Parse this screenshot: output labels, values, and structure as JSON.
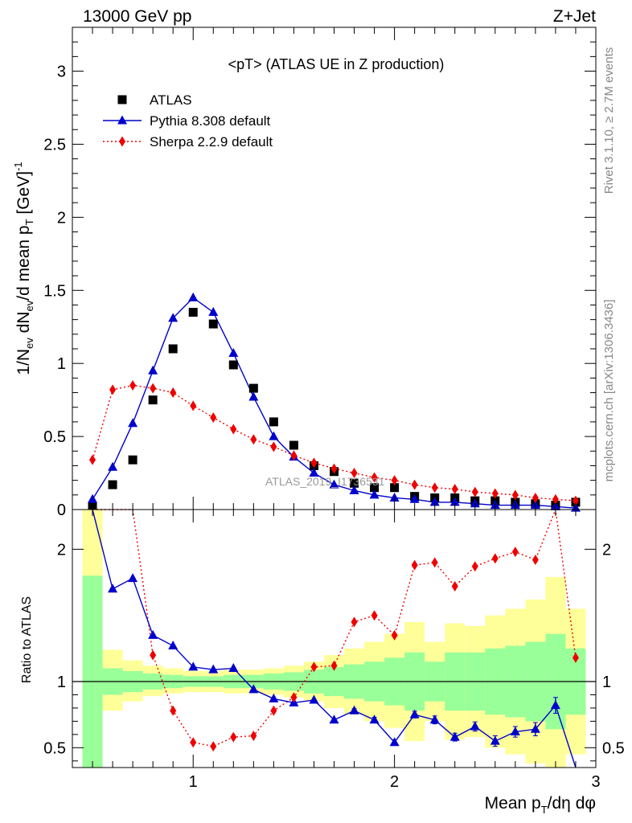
{
  "header": {
    "left": "13000 GeV pp",
    "right": "Z+Jet"
  },
  "side": {
    "rivet": "Rivet 3.1.10, ≥ 2.7M events",
    "mcplots": "mcplots.cern.ch [arXiv:1306.3436]"
  },
  "watermark": "ATLAS_2019_I1736531",
  "colors": {
    "atlas": "#000000",
    "pythia": "#0000cc",
    "sherpa": "#ee0000",
    "band_stat": "#99ff99",
    "band_total": "#ffff99"
  },
  "chart_data": [
    {
      "type": "scatter",
      "title": "<pT> (ATLAS UE in Z production)",
      "ylabel": "1/N_ev dN_ev/d mean p_T [GeV]^-1",
      "xlabel": "Mean p_T/dη dφ",
      "xlim": [
        0.4,
        3.0
      ],
      "ylim": [
        0,
        3.3
      ],
      "xticks": [
        1,
        2,
        3
      ],
      "yticks": [
        0,
        0.5,
        1,
        1.5,
        2,
        2.5,
        3
      ],
      "ytick_labels": [
        "0",
        "0.5",
        "1",
        "1.5",
        "2",
        "2.5",
        "3"
      ],
      "legend_position": "top-left",
      "x": [
        0.5,
        0.6,
        0.7,
        0.8,
        0.9,
        1.0,
        1.1,
        1.2,
        1.3,
        1.4,
        1.5,
        1.6,
        1.7,
        1.8,
        1.9,
        2.0,
        2.1,
        2.2,
        2.3,
        2.4,
        2.5,
        2.6,
        2.7,
        2.8,
        2.9
      ],
      "series": [
        {
          "name": "ATLAS",
          "marker": "square",
          "values": [
            0.02,
            0.17,
            0.34,
            0.75,
            1.1,
            1.35,
            1.27,
            0.99,
            0.83,
            0.6,
            0.44,
            0.3,
            0.26,
            0.18,
            0.15,
            0.15,
            0.09,
            0.08,
            0.08,
            0.06,
            0.06,
            0.05,
            0.04,
            0.03,
            0.05
          ]
        },
        {
          "name": "Pythia 8.308 default",
          "marker": "triangle",
          "line": "solid",
          "values": [
            0.07,
            0.29,
            0.59,
            0.95,
            1.31,
            1.45,
            1.35,
            1.07,
            0.77,
            0.5,
            0.36,
            0.25,
            0.17,
            0.13,
            0.1,
            0.08,
            0.07,
            0.05,
            0.05,
            0.04,
            0.03,
            0.03,
            0.03,
            0.02,
            0.01
          ]
        },
        {
          "name": "Sherpa 2.2.9 default",
          "marker": "diamond",
          "line": "dotted",
          "values": [
            0.34,
            0.82,
            0.85,
            0.83,
            0.8,
            0.71,
            0.63,
            0.55,
            0.48,
            0.43,
            0.37,
            0.32,
            0.28,
            0.25,
            0.22,
            0.2,
            0.17,
            0.15,
            0.14,
            0.12,
            0.11,
            0.1,
            0.08,
            0.07,
            0.06
          ]
        }
      ]
    },
    {
      "type": "line",
      "ylabel": "Ratio to ATLAS",
      "xlabel": "Mean p_T/dη dφ",
      "xlim": [
        0.4,
        3.0
      ],
      "ylim": [
        0.35,
        2.3
      ],
      "xticks": [
        1,
        2,
        3
      ],
      "xtick_labels": [
        "1",
        "2",
        "3"
      ],
      "yticks": [
        0.5,
        1,
        2
      ],
      "ytick_labels": [
        "0.5",
        "1",
        "2"
      ],
      "reference_line": 1,
      "x": [
        0.5,
        0.6,
        0.7,
        0.8,
        0.9,
        1.0,
        1.1,
        1.2,
        1.3,
        1.4,
        1.5,
        1.6,
        1.7,
        1.8,
        1.9,
        2.0,
        2.1,
        2.2,
        2.3,
        2.4,
        2.5,
        2.6,
        2.7,
        2.8,
        2.9
      ],
      "bands": {
        "stat_upper": [
          1.8,
          1.1,
          1.08,
          1.06,
          1.05,
          1.04,
          1.04,
          1.05,
          1.05,
          1.06,
          1.07,
          1.09,
          1.11,
          1.13,
          1.15,
          1.18,
          1.22,
          1.15,
          1.22,
          1.22,
          1.25,
          1.27,
          1.3,
          1.36,
          1.25
        ],
        "stat_lower": [
          0.2,
          0.9,
          0.92,
          0.94,
          0.95,
          0.96,
          0.96,
          0.95,
          0.95,
          0.94,
          0.93,
          0.91,
          0.89,
          0.87,
          0.85,
          0.82,
          0.78,
          0.85,
          0.78,
          0.78,
          0.75,
          0.73,
          0.7,
          0.64,
          0.75
        ],
        "total_upper": [
          2.3,
          1.24,
          1.16,
          1.12,
          1.1,
          1.08,
          1.08,
          1.09,
          1.09,
          1.1,
          1.12,
          1.15,
          1.2,
          1.25,
          1.3,
          1.36,
          1.45,
          1.3,
          1.44,
          1.42,
          1.5,
          1.55,
          1.62,
          1.79,
          1.55
        ],
        "total_lower": [
          0.2,
          0.78,
          0.85,
          0.89,
          0.91,
          0.92,
          0.92,
          0.91,
          0.91,
          0.9,
          0.88,
          0.85,
          0.8,
          0.75,
          0.7,
          0.65,
          0.55,
          0.7,
          0.56,
          0.58,
          0.5,
          0.45,
          0.38,
          0.21,
          0.45
        ]
      },
      "series": [
        {
          "name": "Pythia 8.308 default",
          "values": [
            2.3,
            1.7,
            1.78,
            1.35,
            1.27,
            1.11,
            1.09,
            1.1,
            0.94,
            0.87,
            0.84,
            0.86,
            0.71,
            0.78,
            0.71,
            0.54,
            0.75,
            0.71,
            0.58,
            0.66,
            0.55,
            0.62,
            0.64,
            0.82,
            0.2
          ],
          "errors": [
            0,
            0,
            0,
            0,
            0,
            0,
            0,
            0,
            0,
            0,
            0,
            0,
            0,
            0.015,
            0.02,
            0.02,
            0.025,
            0.03,
            0.03,
            0.035,
            0.04,
            0.04,
            0.05,
            0.06,
            0
          ]
        },
        {
          "name": "Sherpa 2.2.9 default",
          "values": [
            2.3,
            2.3,
            2.3,
            1.2,
            0.78,
            0.54,
            0.51,
            0.58,
            0.59,
            0.78,
            0.88,
            1.11,
            1.12,
            1.45,
            1.5,
            1.35,
            1.88,
            1.9,
            1.72,
            1.87,
            1.93,
            1.98,
            1.92,
            2.3,
            1.18
          ]
        }
      ]
    }
  ]
}
